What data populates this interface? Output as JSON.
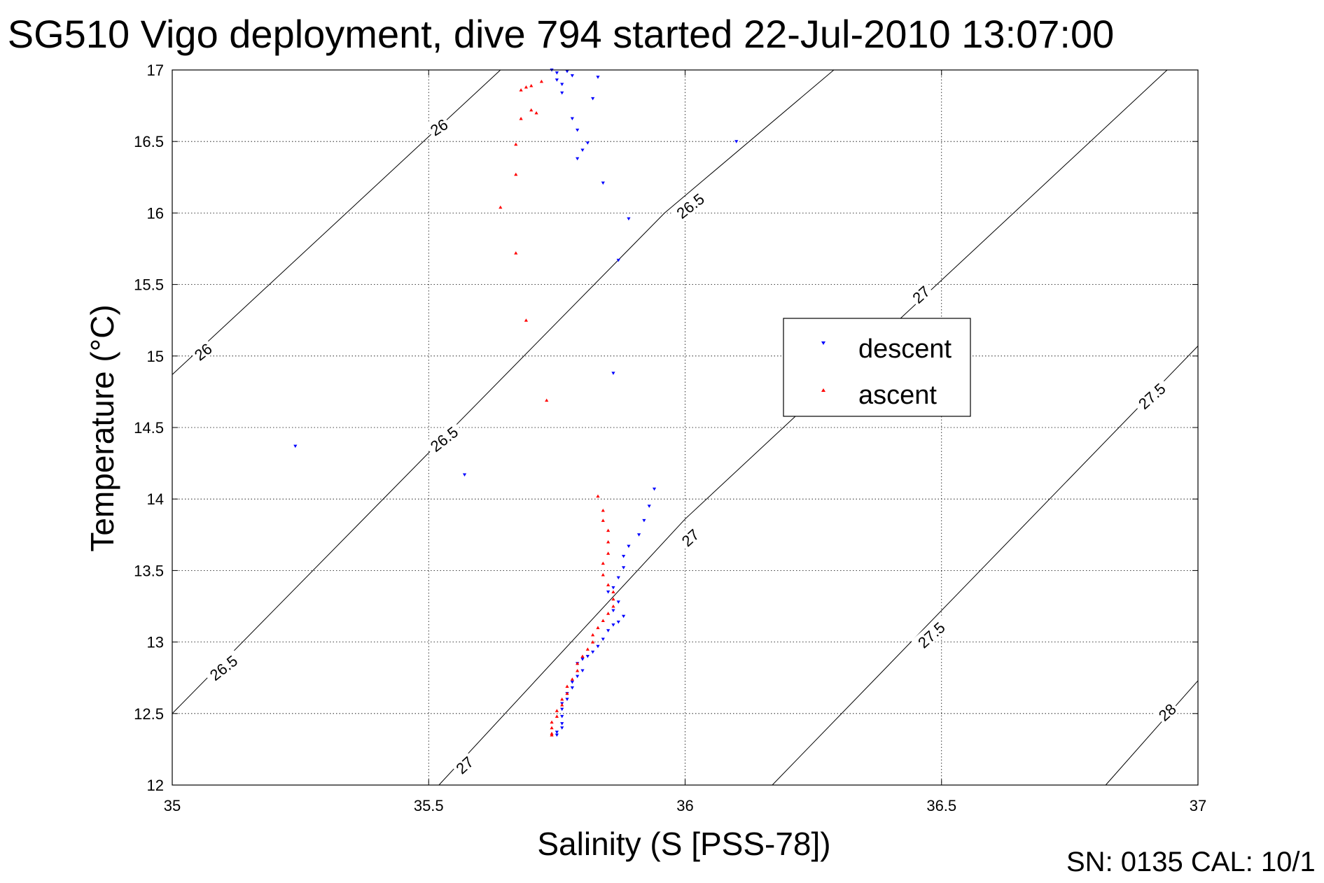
{
  "chart_data": {
    "type": "scatter",
    "title": "SG510 Vigo deployment, dive 794 started 22-Jul-2010 13:07:00",
    "xlabel": "Salinity (S [PSS-78])",
    "ylabel": "Temperature (°C)",
    "xlim": [
      35,
      37
    ],
    "ylim": [
      12,
      17
    ],
    "xticks": [
      "35",
      "35.5",
      "36",
      "36.5",
      "37"
    ],
    "yticks": [
      "12",
      "12.5",
      "13",
      "13.5",
      "14",
      "14.5",
      "15",
      "15.5",
      "16",
      "16.5",
      "17"
    ],
    "grid": true,
    "legend_position": "center-right",
    "series": [
      {
        "name": "descent",
        "color": "#0000ff",
        "marker": "down-triangle",
        "points": [
          [
            35.74,
            17.0
          ],
          [
            35.75,
            16.98
          ],
          [
            35.77,
            16.99
          ],
          [
            35.78,
            16.96
          ],
          [
            35.83,
            16.95
          ],
          [
            35.75,
            16.93
          ],
          [
            35.76,
            16.9
          ],
          [
            35.76,
            16.84
          ],
          [
            35.82,
            16.8
          ],
          [
            35.78,
            16.66
          ],
          [
            35.79,
            16.58
          ],
          [
            35.81,
            16.49
          ],
          [
            35.8,
            16.44
          ],
          [
            35.79,
            16.38
          ],
          [
            35.84,
            16.21
          ],
          [
            36.1,
            16.5
          ],
          [
            35.89,
            15.96
          ],
          [
            35.87,
            15.67
          ],
          [
            35.86,
            14.88
          ],
          [
            35.24,
            14.37
          ],
          [
            35.57,
            14.17
          ],
          [
            35.94,
            14.07
          ],
          [
            35.93,
            13.95
          ],
          [
            35.92,
            13.85
          ],
          [
            35.91,
            13.75
          ],
          [
            35.89,
            13.67
          ],
          [
            35.88,
            13.6
          ],
          [
            35.88,
            13.52
          ],
          [
            35.87,
            13.45
          ],
          [
            35.86,
            13.38
          ],
          [
            35.85,
            13.35
          ],
          [
            35.87,
            13.28
          ],
          [
            35.86,
            13.22
          ],
          [
            35.88,
            13.18
          ],
          [
            35.87,
            13.14
          ],
          [
            35.86,
            13.12
          ],
          [
            35.85,
            13.08
          ],
          [
            35.84,
            13.02
          ],
          [
            35.83,
            12.97
          ],
          [
            35.82,
            12.93
          ],
          [
            35.81,
            12.9
          ],
          [
            35.8,
            12.88
          ],
          [
            35.79,
            12.85
          ],
          [
            35.8,
            12.8
          ],
          [
            35.79,
            12.76
          ],
          [
            35.78,
            12.72
          ],
          [
            35.78,
            12.68
          ],
          [
            35.77,
            12.64
          ],
          [
            35.77,
            12.6
          ],
          [
            35.76,
            12.57
          ],
          [
            35.76,
            12.53
          ],
          [
            35.76,
            12.48
          ],
          [
            35.76,
            12.43
          ],
          [
            35.76,
            12.4
          ],
          [
            35.75,
            12.37
          ],
          [
            35.75,
            12.35
          ]
        ]
      },
      {
        "name": "ascent",
        "color": "#ff0000",
        "marker": "up-triangle",
        "points": [
          [
            35.72,
            16.92
          ],
          [
            35.7,
            16.89
          ],
          [
            35.69,
            16.88
          ],
          [
            35.68,
            16.86
          ],
          [
            35.7,
            16.72
          ],
          [
            35.71,
            16.7
          ],
          [
            35.68,
            16.66
          ],
          [
            35.67,
            16.48
          ],
          [
            35.67,
            16.27
          ],
          [
            35.64,
            16.04
          ],
          [
            35.67,
            15.72
          ],
          [
            35.69,
            15.25
          ],
          [
            35.73,
            14.69
          ],
          [
            35.83,
            14.02
          ],
          [
            35.84,
            13.92
          ],
          [
            35.84,
            13.85
          ],
          [
            35.85,
            13.78
          ],
          [
            35.85,
            13.7
          ],
          [
            35.85,
            13.62
          ],
          [
            35.84,
            13.55
          ],
          [
            35.84,
            13.47
          ],
          [
            35.85,
            13.4
          ],
          [
            35.86,
            13.35
          ],
          [
            35.86,
            13.3
          ],
          [
            35.86,
            13.25
          ],
          [
            35.85,
            13.2
          ],
          [
            35.84,
            13.15
          ],
          [
            35.83,
            13.1
          ],
          [
            35.82,
            13.05
          ],
          [
            35.82,
            13.0
          ],
          [
            35.81,
            12.95
          ],
          [
            35.8,
            12.9
          ],
          [
            35.79,
            12.85
          ],
          [
            35.79,
            12.8
          ],
          [
            35.78,
            12.74
          ],
          [
            35.77,
            12.69
          ],
          [
            35.77,
            12.64
          ],
          [
            35.76,
            12.6
          ],
          [
            35.76,
            12.56
          ],
          [
            35.75,
            12.52
          ],
          [
            35.75,
            12.48
          ],
          [
            35.74,
            12.44
          ],
          [
            35.74,
            12.4
          ],
          [
            35.74,
            12.36
          ],
          [
            35.74,
            12.35
          ]
        ]
      }
    ],
    "density_contours": [
      {
        "label": "26",
        "points": [
          [
            35.0,
            14.87
          ],
          [
            35.64,
            17.0
          ]
        ]
      },
      {
        "label": "26.5",
        "points": [
          [
            35.0,
            12.5
          ],
          [
            35.96,
            16.0
          ],
          [
            36.29,
            17.0
          ]
        ]
      },
      {
        "label": "27",
        "points": [
          [
            35.52,
            12.0
          ],
          [
            36.0,
            13.86
          ],
          [
            36.94,
            17.0
          ]
        ]
      },
      {
        "label": "27.5",
        "points": [
          [
            36.17,
            12.0
          ],
          [
            37.0,
            15.07
          ]
        ]
      },
      {
        "label": "28",
        "points": [
          [
            36.82,
            12.0
          ],
          [
            37.0,
            12.73
          ]
        ]
      }
    ],
    "contour_labels": [
      {
        "text": "26",
        "s": 35.52,
        "t": 16.6,
        "angle": -33
      },
      {
        "text": "26",
        "s": 35.06,
        "t": 15.03,
        "angle": -38
      },
      {
        "text": "26.5",
        "s": 36.01,
        "t": 16.05,
        "angle": -38
      },
      {
        "text": "26.5",
        "s": 35.53,
        "t": 14.42,
        "angle": -38
      },
      {
        "text": "26.5",
        "s": 35.1,
        "t": 12.82,
        "angle": -38
      },
      {
        "text": "27",
        "s": 36.46,
        "t": 15.43,
        "angle": -42
      },
      {
        "text": "27",
        "s": 36.01,
        "t": 13.73,
        "angle": -42
      },
      {
        "text": "27",
        "s": 35.57,
        "t": 12.14,
        "angle": -42
      },
      {
        "text": "27.5",
        "s": 36.91,
        "t": 14.72,
        "angle": -42
      },
      {
        "text": "27.5",
        "s": 36.48,
        "t": 13.05,
        "angle": -42
      },
      {
        "text": "28",
        "s": 36.94,
        "t": 12.51,
        "angle": -42
      }
    ]
  },
  "footer": {
    "text": "SN: 0135  CAL: 10/1"
  }
}
